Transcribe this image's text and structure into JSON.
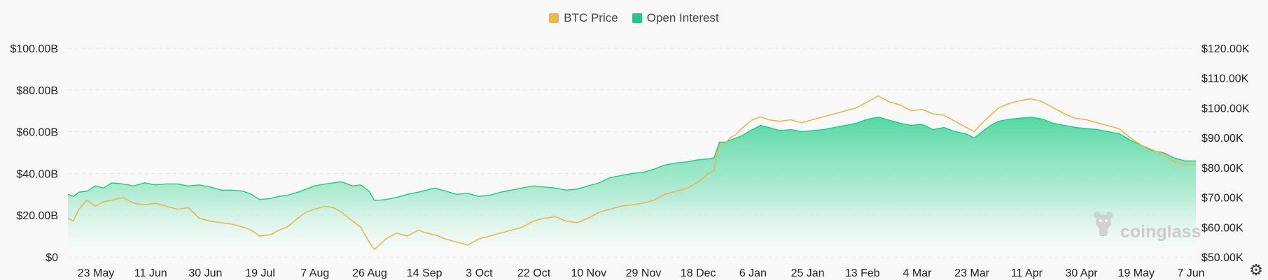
{
  "chart_data": {
    "type": "area",
    "legend_position": "top-center",
    "grid": true,
    "series": [
      {
        "name": "BTC Price",
        "type": "line",
        "axis": "right",
        "color": "#e8b94d"
      },
      {
        "name": "Open Interest",
        "type": "area",
        "axis": "left",
        "color": "#1fc98a"
      }
    ],
    "x_ticks": [
      "23 May",
      "11 Jun",
      "30 Jun",
      "19 Jul",
      "7 Aug",
      "26 Aug",
      "14 Sep",
      "3 Oct",
      "22 Oct",
      "10 Nov",
      "29 Nov",
      "18 Dec",
      "6 Jan",
      "25 Jan",
      "13 Feb",
      "4 Mar",
      "23 Mar",
      "11 Apr",
      "30 Apr",
      "19 May",
      "7 Jun"
    ],
    "y_left_ticks": [
      "$0",
      "$20.00B",
      "$40.00B",
      "$60.00B",
      "$80.00B",
      "$100.00B"
    ],
    "y_right_ticks": [
      "$50.00K",
      "$60.00K",
      "$70.00K",
      "$80.00K",
      "$90.00K",
      "$100.00K",
      "$110.00K",
      "$120.00K"
    ],
    "y_left_range": [
      0,
      100
    ],
    "y_right_range": [
      50,
      120
    ],
    "y_left_unit": "$B",
    "y_right_unit": "$K",
    "x_index_range": [
      0,
      20.6
    ],
    "oi_points": [
      [
        0,
        30
      ],
      [
        0.1,
        29
      ],
      [
        0.2,
        31
      ],
      [
        0.35,
        31.5
      ],
      [
        0.5,
        34
      ],
      [
        0.65,
        33
      ],
      [
        0.8,
        35.5
      ],
      [
        1,
        35
      ],
      [
        1.2,
        34
      ],
      [
        1.4,
        35.5
      ],
      [
        1.6,
        34.5
      ],
      [
        1.8,
        35
      ],
      [
        2,
        35
      ],
      [
        2.2,
        34
      ],
      [
        2.4,
        34.5
      ],
      [
        2.6,
        33.5
      ],
      [
        2.8,
        32
      ],
      [
        3,
        32
      ],
      [
        3.2,
        31.5
      ],
      [
        3.35,
        30
      ],
      [
        3.5,
        27.5
      ],
      [
        3.7,
        28
      ],
      [
        3.85,
        29
      ],
      [
        4,
        29.5
      ],
      [
        4.2,
        31
      ],
      [
        4.35,
        32.5
      ],
      [
        4.5,
        34
      ],
      [
        4.7,
        35
      ],
      [
        4.85,
        35.5
      ],
      [
        5,
        36
      ],
      [
        5.2,
        34
      ],
      [
        5.35,
        34.5
      ],
      [
        5.5,
        31.5
      ],
      [
        5.6,
        27
      ],
      [
        5.8,
        27.5
      ],
      [
        6,
        28.5
      ],
      [
        6.2,
        30
      ],
      [
        6.4,
        31
      ],
      [
        6.55,
        32
      ],
      [
        6.7,
        33
      ],
      [
        6.9,
        31.5
      ],
      [
        7.1,
        30
      ],
      [
        7.3,
        30.5
      ],
      [
        7.5,
        29
      ],
      [
        7.7,
        29.5
      ],
      [
        7.9,
        31
      ],
      [
        8.1,
        32
      ],
      [
        8.3,
        33
      ],
      [
        8.5,
        34
      ],
      [
        8.7,
        33.5
      ],
      [
        8.9,
        33
      ],
      [
        9.1,
        32
      ],
      [
        9.3,
        32.5
      ],
      [
        9.5,
        34
      ],
      [
        9.7,
        35.5
      ],
      [
        9.9,
        38
      ],
      [
        10.1,
        39
      ],
      [
        10.3,
        40
      ],
      [
        10.5,
        40.5
      ],
      [
        10.7,
        42
      ],
      [
        10.9,
        44
      ],
      [
        11.1,
        45
      ],
      [
        11.3,
        45.5
      ],
      [
        11.5,
        46.5
      ],
      [
        11.7,
        47
      ],
      [
        11.8,
        47.5
      ],
      [
        11.82,
        49
      ],
      [
        11.9,
        55
      ],
      [
        12,
        55
      ],
      [
        12.1,
        56
      ],
      [
        12.2,
        57
      ],
      [
        12.3,
        58
      ],
      [
        12.5,
        61
      ],
      [
        12.65,
        63
      ],
      [
        12.8,
        62
      ],
      [
        13,
        60.5
      ],
      [
        13.2,
        61
      ],
      [
        13.4,
        60
      ],
      [
        13.6,
        60.5
      ],
      [
        13.8,
        61
      ],
      [
        14,
        62
      ],
      [
        14.2,
        63
      ],
      [
        14.4,
        64
      ],
      [
        14.6,
        66
      ],
      [
        14.8,
        67
      ],
      [
        15,
        65.5
      ],
      [
        15.2,
        64
      ],
      [
        15.4,
        63
      ],
      [
        15.6,
        63.5
      ],
      [
        15.8,
        61
      ],
      [
        16,
        62
      ],
      [
        16.2,
        60
      ],
      [
        16.4,
        59
      ],
      [
        16.55,
        57
      ],
      [
        16.7,
        60
      ],
      [
        16.85,
        63
      ],
      [
        17,
        65
      ],
      [
        17.2,
        66
      ],
      [
        17.4,
        66.5
      ],
      [
        17.6,
        67
      ],
      [
        17.8,
        66
      ],
      [
        18,
        64
      ],
      [
        18.2,
        63
      ],
      [
        18.4,
        62
      ],
      [
        18.6,
        61.5
      ],
      [
        18.8,
        61
      ],
      [
        19,
        60
      ],
      [
        19.2,
        59
      ],
      [
        19.4,
        56
      ],
      [
        19.6,
        53.5
      ],
      [
        19.8,
        51
      ],
      [
        20,
        50
      ],
      [
        20.2,
        47.5
      ],
      [
        20.4,
        46
      ],
      [
        20.6,
        46
      ]
    ],
    "price_points": [
      [
        0,
        63
      ],
      [
        0.1,
        62
      ],
      [
        0.2,
        66
      ],
      [
        0.35,
        69
      ],
      [
        0.5,
        67
      ],
      [
        0.65,
        68.5
      ],
      [
        0.8,
        69
      ],
      [
        1,
        70
      ],
      [
        1.2,
        68
      ],
      [
        1.4,
        67.5
      ],
      [
        1.6,
        68
      ],
      [
        1.8,
        67
      ],
      [
        2,
        66
      ],
      [
        2.2,
        66.5
      ],
      [
        2.4,
        63
      ],
      [
        2.6,
        62
      ],
      [
        2.8,
        61.5
      ],
      [
        3,
        61
      ],
      [
        3.2,
        60
      ],
      [
        3.35,
        59
      ],
      [
        3.5,
        57
      ],
      [
        3.7,
        57.5
      ],
      [
        3.85,
        59
      ],
      [
        4,
        60
      ],
      [
        4.2,
        63
      ],
      [
        4.35,
        65
      ],
      [
        4.5,
        66
      ],
      [
        4.7,
        67
      ],
      [
        4.85,
        66.5
      ],
      [
        5,
        65
      ],
      [
        5.2,
        62
      ],
      [
        5.35,
        60
      ],
      [
        5.5,
        55
      ],
      [
        5.6,
        52.5
      ],
      [
        5.8,
        56
      ],
      [
        6,
        58
      ],
      [
        6.2,
        57
      ],
      [
        6.4,
        59
      ],
      [
        6.55,
        58
      ],
      [
        6.7,
        57.5
      ],
      [
        6.9,
        56
      ],
      [
        7.1,
        55
      ],
      [
        7.3,
        54
      ],
      [
        7.5,
        56
      ],
      [
        7.7,
        57
      ],
      [
        7.9,
        58
      ],
      [
        8.1,
        59
      ],
      [
        8.3,
        60
      ],
      [
        8.5,
        62
      ],
      [
        8.7,
        63
      ],
      [
        8.9,
        63.5
      ],
      [
        9.1,
        62
      ],
      [
        9.3,
        61.5
      ],
      [
        9.5,
        63
      ],
      [
        9.7,
        65
      ],
      [
        9.9,
        66
      ],
      [
        10.1,
        67
      ],
      [
        10.3,
        67.5
      ],
      [
        10.5,
        68
      ],
      [
        10.7,
        69
      ],
      [
        10.9,
        71
      ],
      [
        11.1,
        72
      ],
      [
        11.3,
        73
      ],
      [
        11.5,
        75
      ],
      [
        11.7,
        78
      ],
      [
        11.8,
        79
      ],
      [
        11.82,
        82
      ],
      [
        11.9,
        87
      ],
      [
        12,
        88
      ],
      [
        12.1,
        90
      ],
      [
        12.2,
        91
      ],
      [
        12.3,
        93
      ],
      [
        12.5,
        96
      ],
      [
        12.65,
        97
      ],
      [
        12.8,
        96
      ],
      [
        13,
        95.5
      ],
      [
        13.2,
        96
      ],
      [
        13.4,
        95
      ],
      [
        13.6,
        96
      ],
      [
        13.8,
        97
      ],
      [
        14,
        98
      ],
      [
        14.2,
        99
      ],
      [
        14.4,
        100
      ],
      [
        14.6,
        102
      ],
      [
        14.8,
        104
      ],
      [
        15,
        102
      ],
      [
        15.2,
        101
      ],
      [
        15.4,
        99
      ],
      [
        15.6,
        99.5
      ],
      [
        15.8,
        98
      ],
      [
        16,
        97.5
      ],
      [
        16.2,
        95.5
      ],
      [
        16.4,
        93.5
      ],
      [
        16.55,
        92
      ],
      [
        16.7,
        95
      ],
      [
        16.85,
        97.5
      ],
      [
        17,
        100
      ],
      [
        17.2,
        101.5
      ],
      [
        17.4,
        102.5
      ],
      [
        17.6,
        103
      ],
      [
        17.8,
        102
      ],
      [
        18,
        100
      ],
      [
        18.2,
        98
      ],
      [
        18.4,
        96.5
      ],
      [
        18.6,
        96
      ],
      [
        18.8,
        95
      ],
      [
        19,
        94
      ],
      [
        19.2,
        93
      ],
      [
        19.4,
        90
      ],
      [
        19.6,
        87.5
      ],
      [
        19.8,
        86
      ],
      [
        20,
        84.5
      ],
      [
        20.2,
        82
      ],
      [
        20.4,
        81
      ],
      [
        20.6,
        81
      ]
    ]
  },
  "legend": {
    "price_label": "BTC Price",
    "oi_label": "Open Interest"
  },
  "watermark": {
    "text": "coinglass",
    "icon": "coinglass-logo-icon"
  },
  "settings_icon": "gear-icon"
}
